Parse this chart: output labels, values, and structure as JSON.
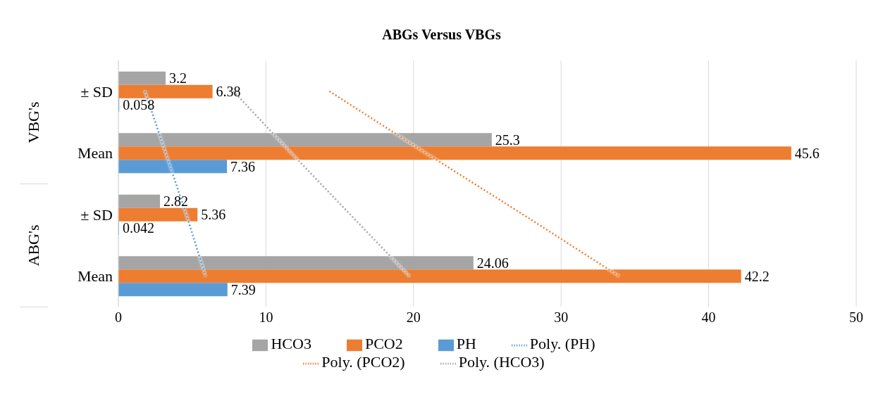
{
  "chart_data": {
    "type": "bar",
    "orientation": "horizontal",
    "title": "ABGs Versus VBGs",
    "categories": [
      "± SD",
      "Mean",
      "± SD",
      "Mean"
    ],
    "annotations": [
      "VBG's",
      "ABG's"
    ],
    "series": [
      {
        "name": "HCO3",
        "color": "#a5a5a5",
        "values": [
          3.2,
          25.3,
          2.82,
          24.06
        ],
        "value_labels": [
          "3.2",
          "25.3",
          "2.82",
          "24.06"
        ]
      },
      {
        "name": "PCO2",
        "color": "#ed7d31",
        "values": [
          6.38,
          45.6,
          5.36,
          42.2
        ],
        "value_labels": [
          "6.38",
          "45.6",
          "5.36",
          "42.2"
        ]
      },
      {
        "name": "PH",
        "color": "#5b9bd5",
        "values": [
          0.058,
          7.36,
          0.042,
          7.39
        ],
        "value_labels": [
          "0.058",
          "7.36",
          "0.042",
          "7.39"
        ]
      },
      {
        "name": "Poly. (PH)",
        "type": "line",
        "line_style": "dotted",
        "color": "#5b9bd5",
        "values": [
          1.8,
          3.2,
          4.6,
          5.9
        ]
      },
      {
        "name": "Poly. (PCO2)",
        "type": "line",
        "line_style": "dotted",
        "color": "#ed7d31",
        "values": [
          14.3,
          20.8,
          27.4,
          33.9
        ]
      },
      {
        "name": "Poly. (HCO3)",
        "type": "line",
        "line_style": "dotted",
        "color": "#a5a5a5",
        "values": [
          7.8,
          11.7,
          15.7,
          19.7
        ]
      }
    ],
    "xlim": [
      0,
      50
    ],
    "xticks": [
      0,
      10,
      20,
      30,
      40,
      50
    ],
    "grid": "x",
    "legend": "bottom"
  }
}
